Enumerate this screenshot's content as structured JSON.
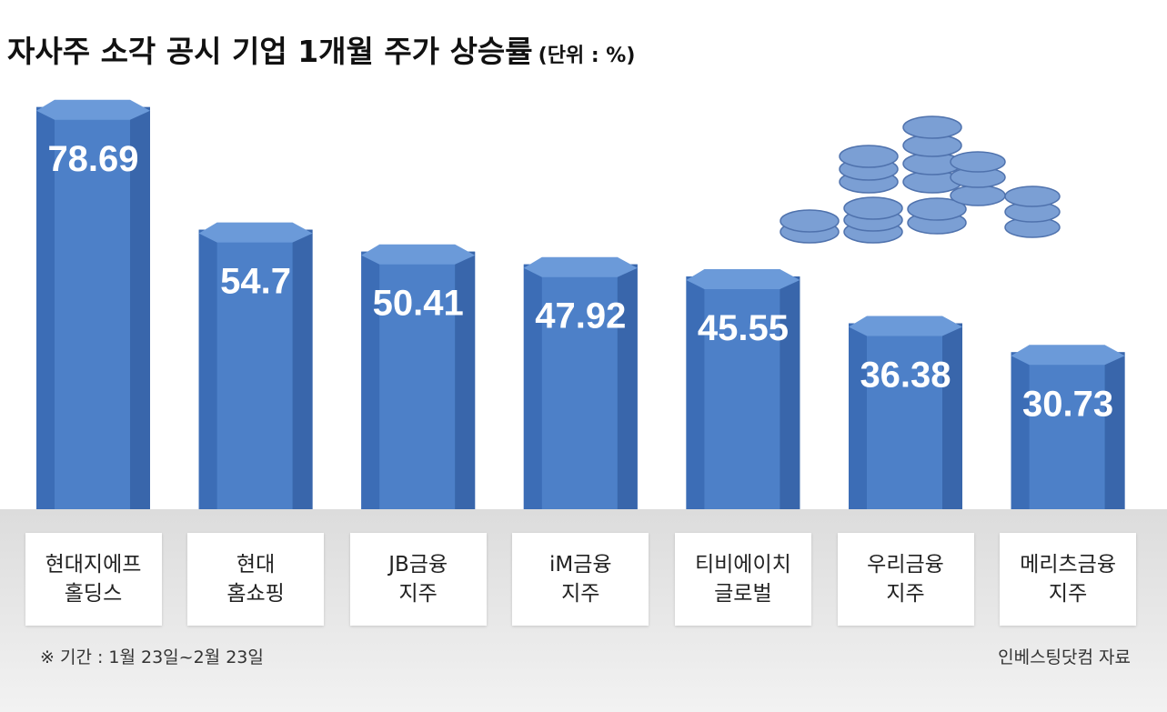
{
  "chart_data": {
    "type": "bar",
    "title": "자사주 소각 공시 기업 1개월 주가 상승률",
    "subtitle": "(단위 : %)",
    "categories": [
      "현대지에프\n홀딩스",
      "현대\n홈쇼핑",
      "JB금융\n지주",
      "iM금융\n지주",
      "티비에이치\n글로벌",
      "우리금융\n지주",
      "메리츠금융\n지주"
    ],
    "values": [
      78.69,
      54.7,
      50.41,
      47.92,
      45.55,
      36.38,
      30.73
    ],
    "color": "#4d80c8",
    "footnote": "※ 기간 : 1월 23일~2월 23일",
    "source": "인베스팅닷컴 자료"
  }
}
